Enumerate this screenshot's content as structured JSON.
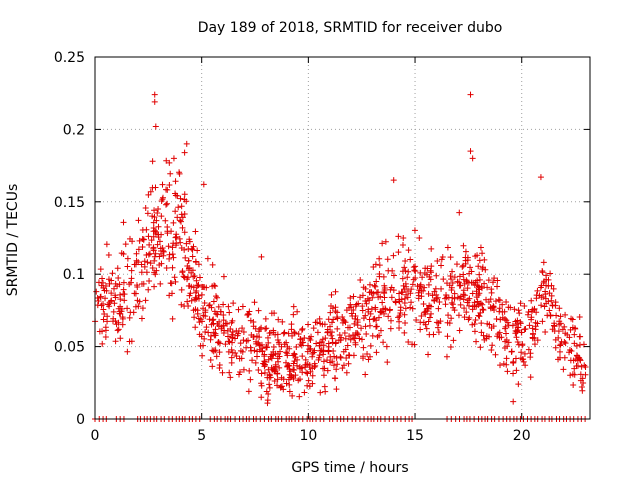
{
  "chart_data": {
    "type": "scatter",
    "title": "Day 189 of 2018, SRMTID for receiver dubo",
    "xlabel": "GPS time / hours",
    "ylabel": "SRMTID / TECUs",
    "xlim": [
      0,
      23.2
    ],
    "ylim": [
      0,
      0.25
    ],
    "xticks": [
      0,
      5,
      10,
      15,
      20
    ],
    "xtick_labels": [
      "0",
      "5",
      "10",
      "15",
      "20"
    ],
    "yticks": [
      0,
      0.05,
      0.1,
      0.15,
      0.2,
      0.25
    ],
    "ytick_labels": [
      "0",
      "0.05",
      "0.1",
      "0.15",
      "0.2",
      "0.25"
    ],
    "grid": true,
    "marker": "plus",
    "color": "#e00000",
    "trend": [
      {
        "x": 0.0,
        "y": 0.085
      },
      {
        "x": 1.0,
        "y": 0.075
      },
      {
        "x": 2.0,
        "y": 0.105
      },
      {
        "x": 3.0,
        "y": 0.125
      },
      {
        "x": 4.0,
        "y": 0.13
      },
      {
        "x": 5.0,
        "y": 0.075
      },
      {
        "x": 6.5,
        "y": 0.055
      },
      {
        "x": 8.0,
        "y": 0.045
      },
      {
        "x": 10.0,
        "y": 0.045
      },
      {
        "x": 12.0,
        "y": 0.06
      },
      {
        "x": 13.5,
        "y": 0.085
      },
      {
        "x": 15.0,
        "y": 0.09
      },
      {
        "x": 16.5,
        "y": 0.08
      },
      {
        "x": 17.5,
        "y": 0.095
      },
      {
        "x": 19.0,
        "y": 0.065
      },
      {
        "x": 20.0,
        "y": 0.05
      },
      {
        "x": 21.0,
        "y": 0.085
      },
      {
        "x": 22.0,
        "y": 0.055
      },
      {
        "x": 23.0,
        "y": 0.035
      }
    ],
    "spread": 0.022,
    "point_count": 1400,
    "outliers": [
      {
        "x": 2.8,
        "y": 0.224
      },
      {
        "x": 2.8,
        "y": 0.219
      },
      {
        "x": 2.85,
        "y": 0.202
      },
      {
        "x": 4.3,
        "y": 0.19
      },
      {
        "x": 4.2,
        "y": 0.184
      },
      {
        "x": 3.7,
        "y": 0.18
      },
      {
        "x": 2.7,
        "y": 0.178
      },
      {
        "x": 17.6,
        "y": 0.224
      },
      {
        "x": 17.6,
        "y": 0.185
      },
      {
        "x": 17.7,
        "y": 0.18
      },
      {
        "x": 20.9,
        "y": 0.167
      },
      {
        "x": 14.0,
        "y": 0.165
      },
      {
        "x": 5.1,
        "y": 0.162
      },
      {
        "x": 7.8,
        "y": 0.112
      },
      {
        "x": 19.6,
        "y": 0.012
      },
      {
        "x": 8.1,
        "y": 0.013
      }
    ],
    "zero_band_ranges": [
      [
        0.0,
        0.6
      ],
      [
        1.0,
        1.5
      ],
      [
        2.0,
        5.0
      ],
      [
        5.4,
        10.8
      ],
      [
        11.0,
        15.0
      ],
      [
        16.5,
        23.0
      ]
    ]
  }
}
